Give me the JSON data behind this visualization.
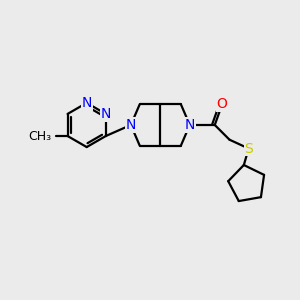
{
  "background_color": "#ebebeb",
  "bond_color": "#000000",
  "N_color": "#0000ff",
  "O_color": "#ff0000",
  "S_color": "#cccc00",
  "line_width": 1.6,
  "font_size": 10,
  "figsize": [
    3.0,
    3.0
  ],
  "dpi": 100,
  "xlim": [
    0,
    10
  ],
  "ylim": [
    0,
    10
  ]
}
